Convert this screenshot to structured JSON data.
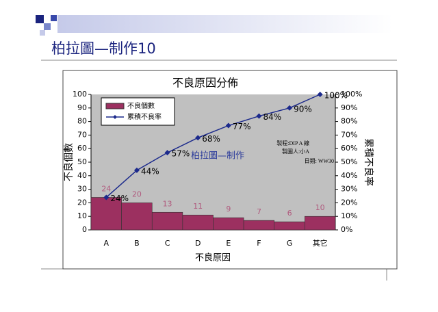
{
  "slide": {
    "title": "柏拉圖—制作10"
  },
  "chart_data": {
    "type": "bar",
    "title": "不良原因分佈",
    "x_label": "不良原因",
    "y_label": "不良個數",
    "y2_label": "累積不良率",
    "categories": [
      "A",
      "B",
      "C",
      "D",
      "E",
      "F",
      "G",
      "其它"
    ],
    "series": [
      {
        "name": "不良個數",
        "type": "bar",
        "color": "#9c3060",
        "values": [
          24,
          20,
          13,
          11,
          9,
          7,
          6,
          10
        ]
      },
      {
        "name": "累積不良率",
        "type": "line",
        "axis": "y2",
        "color": "#1c2a8c",
        "values": [
          24,
          44,
          57,
          68,
          77,
          84,
          90,
          100
        ],
        "value_labels": [
          "24%",
          "44%",
          "57%",
          "68%",
          "77%",
          "84%",
          "90%",
          "100%"
        ]
      }
    ],
    "ylim": [
      0,
      100
    ],
    "yticks": [
      0,
      10,
      20,
      30,
      40,
      50,
      60,
      70,
      80,
      90,
      100
    ],
    "y2lim": [
      0,
      100
    ],
    "y2ticks": [
      {
        "value": 0,
        "label": "0%"
      },
      {
        "value": 10,
        "label": "10%"
      },
      {
        "value": 20,
        "label": "20%"
      },
      {
        "value": 30,
        "label": "30%"
      },
      {
        "value": 40,
        "label": "40%"
      },
      {
        "value": 50,
        "label": "50%"
      },
      {
        "value": 60,
        "label": "60%"
      },
      {
        "value": 70,
        "label": "70%"
      },
      {
        "value": 80,
        "label": "80%"
      },
      {
        "value": 90,
        "label": "90%"
      },
      {
        "value": 100,
        "label": "100%"
      }
    ],
    "legend": "upper left",
    "annotations": [
      "製程:DIP A 線",
      "製圖人:小A",
      "日期: WW30",
      "柏拉圖—制作"
    ]
  }
}
